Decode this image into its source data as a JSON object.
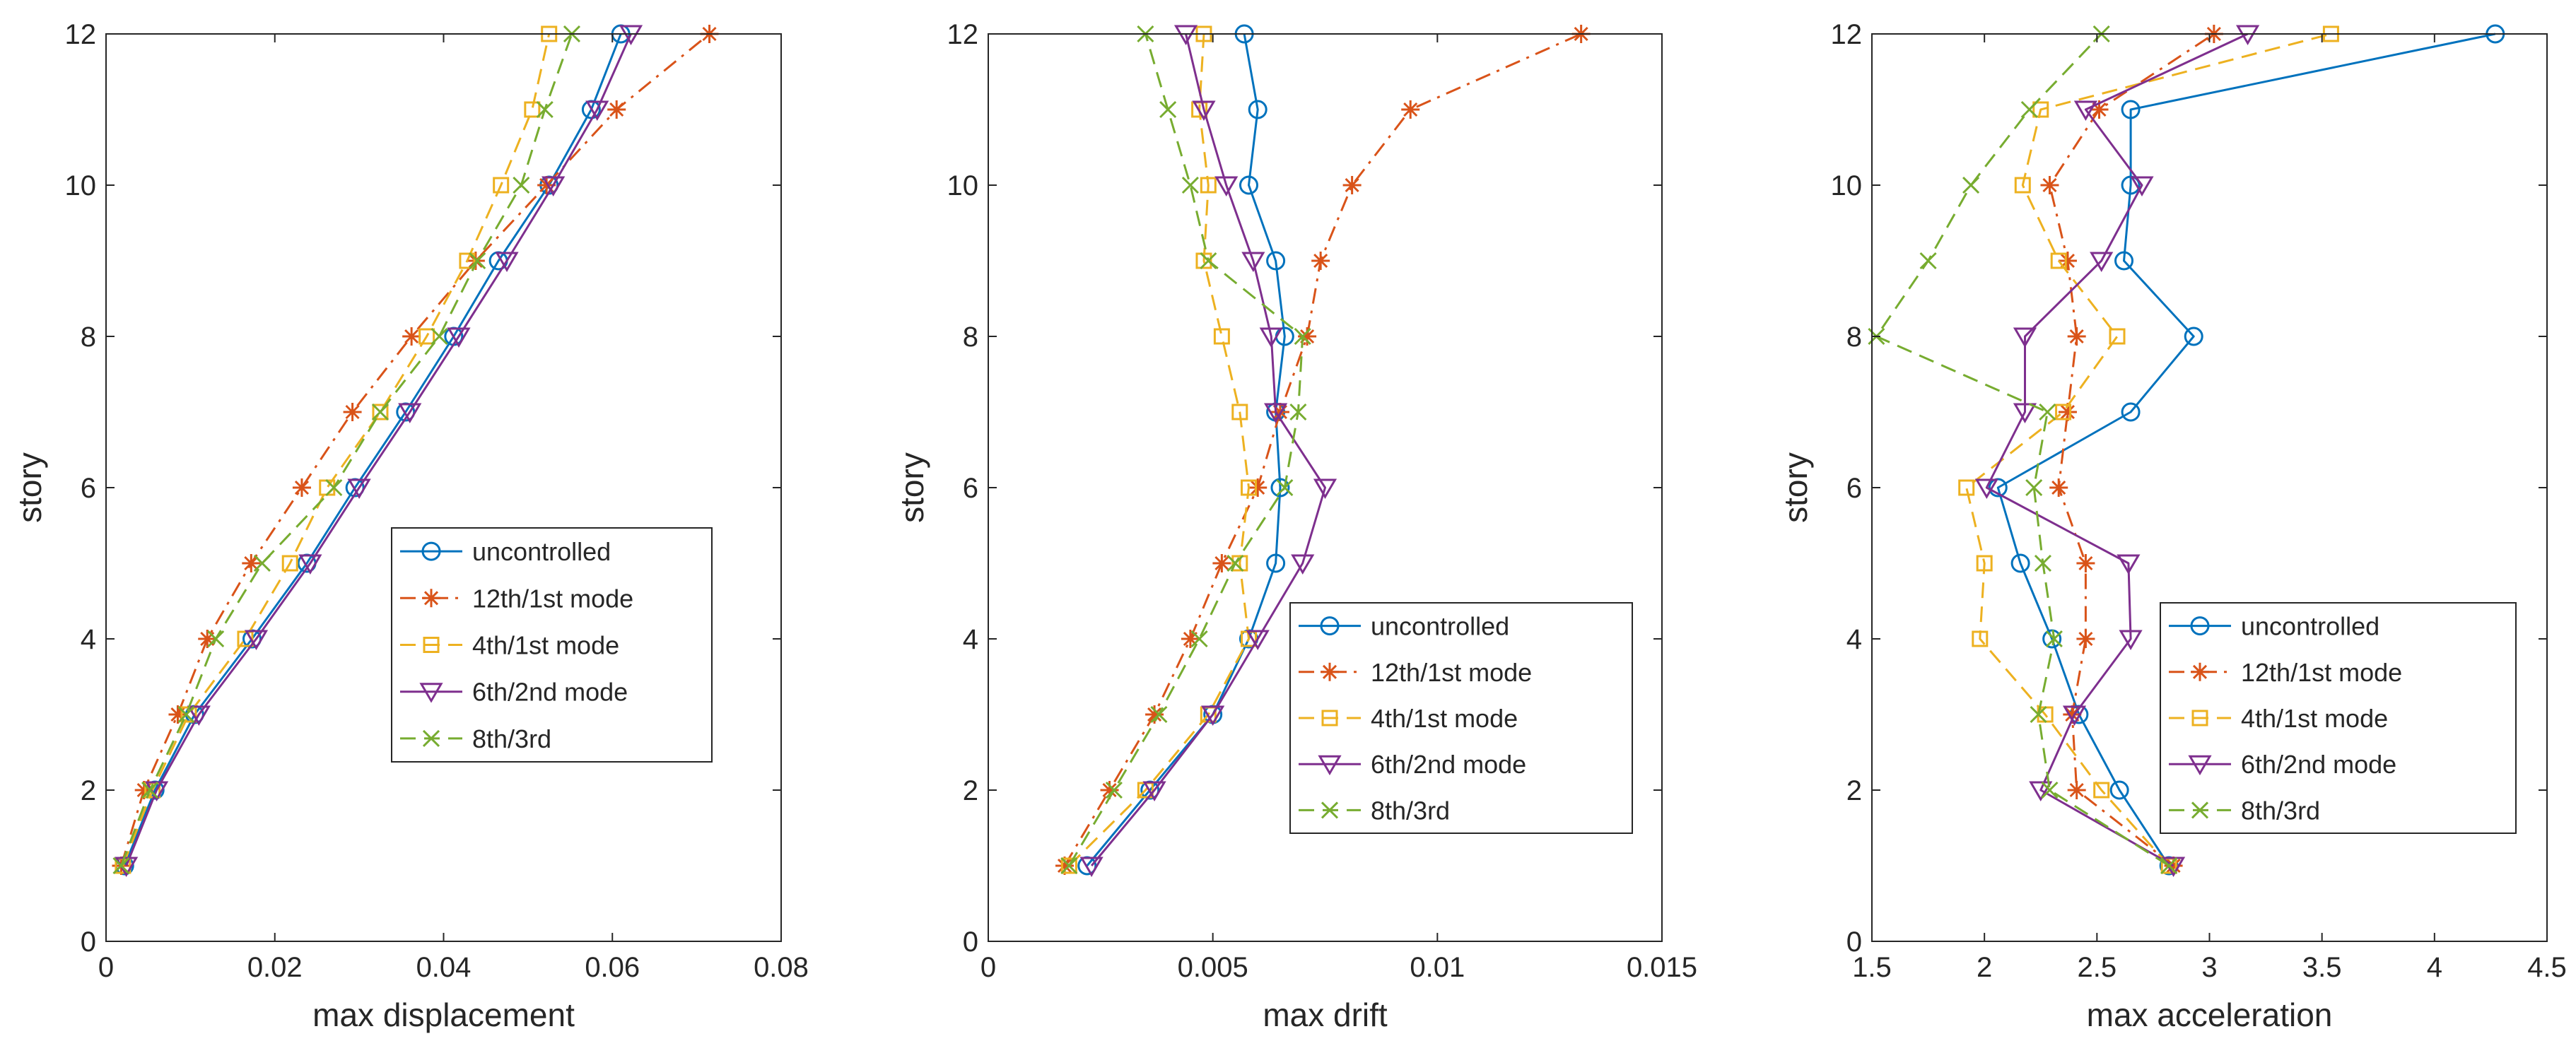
{
  "chart_data": [
    {
      "type": "line",
      "title": "",
      "xlabel": "max displacement",
      "ylabel": "story",
      "xlim": [
        0,
        0.08
      ],
      "ylim": [
        0,
        12
      ],
      "xticks": [
        0,
        0.02,
        0.04,
        0.06,
        0.08
      ],
      "xtick_labels": [
        "0",
        "0.02",
        "0.04",
        "0.06",
        "0.08"
      ],
      "yticks": [
        0,
        2,
        4,
        6,
        8,
        10,
        12
      ],
      "ytick_labels": [
        "0",
        "2",
        "4",
        "6",
        "8",
        "10",
        "12"
      ],
      "legend_position": "middle-right",
      "y": [
        1,
        2,
        3,
        4,
        5,
        6,
        7,
        8,
        9,
        10,
        11,
        12
      ],
      "series": [
        {
          "name": "uncontrolled",
          "values": [
            0.0022,
            0.0058,
            0.0105,
            0.0173,
            0.0238,
            0.0295,
            0.0355,
            0.0412,
            0.0465,
            0.0525,
            0.0575,
            0.061
          ]
        },
        {
          "name": "12th/1st mode",
          "values": [
            0.0018,
            0.0045,
            0.0085,
            0.012,
            0.0172,
            0.0232,
            0.0292,
            0.0362,
            0.0438,
            0.0522,
            0.0605,
            0.0715
          ]
        },
        {
          "name": "4th/1st mode",
          "values": [
            0.002,
            0.0055,
            0.0098,
            0.0165,
            0.0218,
            0.0262,
            0.0325,
            0.038,
            0.0428,
            0.0468,
            0.0505,
            0.0525
          ]
        },
        {
          "name": "6th/2nd mode",
          "values": [
            0.0024,
            0.006,
            0.011,
            0.0178,
            0.0242,
            0.03,
            0.036,
            0.0418,
            0.0475,
            0.053,
            0.0582,
            0.0622
          ]
        },
        {
          "name": "8th/3rd",
          "values": [
            0.0018,
            0.0052,
            0.0095,
            0.013,
            0.0185,
            0.027,
            0.0325,
            0.0395,
            0.044,
            0.0492,
            0.052,
            0.0552
          ]
        }
      ]
    },
    {
      "type": "line",
      "title": "",
      "xlabel": "max drift",
      "ylabel": "story",
      "xlim": [
        0,
        0.015
      ],
      "ylim": [
        0,
        12
      ],
      "xticks": [
        0,
        0.005,
        0.01,
        0.015
      ],
      "xtick_labels": [
        "0",
        "0.005",
        "0.01",
        "0.015"
      ],
      "yticks": [
        0,
        2,
        4,
        6,
        8,
        10,
        12
      ],
      "ytick_labels": [
        "0",
        "2",
        "4",
        "6",
        "8",
        "10",
        "12"
      ],
      "legend_position": "bottom-right",
      "y": [
        1,
        2,
        3,
        4,
        5,
        6,
        7,
        8,
        9,
        10,
        11,
        12
      ],
      "series": [
        {
          "name": "uncontrolled",
          "values": [
            0.0022,
            0.0036,
            0.005,
            0.0058,
            0.0064,
            0.0065,
            0.0064,
            0.0066,
            0.0064,
            0.0058,
            0.006,
            0.0057
          ]
        },
        {
          "name": "12th/1st mode",
          "values": [
            0.0017,
            0.0027,
            0.0037,
            0.0045,
            0.0052,
            0.006,
            0.0065,
            0.0071,
            0.0074,
            0.0081,
            0.0094,
            0.0132
          ]
        },
        {
          "name": "4th/1st mode",
          "values": [
            0.0018,
            0.0035,
            0.0049,
            0.0058,
            0.0056,
            0.0058,
            0.0056,
            0.0052,
            0.0048,
            0.0049,
            0.0047,
            0.0048
          ]
        },
        {
          "name": "6th/2nd mode",
          "values": [
            0.0023,
            0.0037,
            0.005,
            0.006,
            0.007,
            0.0075,
            0.0064,
            0.0063,
            0.0059,
            0.0053,
            0.0048,
            0.0044
          ]
        },
        {
          "name": "8th/3rd",
          "values": [
            0.0018,
            0.0028,
            0.0038,
            0.0047,
            0.0055,
            0.0066,
            0.0069,
            0.007,
            0.0049,
            0.0045,
            0.004,
            0.0035
          ]
        }
      ]
    },
    {
      "type": "line",
      "title": "",
      "xlabel": "max acceleration",
      "ylabel": "story",
      "xlim": [
        1.5,
        4.5
      ],
      "ylim": [
        0,
        12
      ],
      "xticks": [
        1.5,
        2,
        2.5,
        3,
        3.5,
        4,
        4.5
      ],
      "xtick_labels": [
        "1.5",
        "2",
        "2.5",
        "3",
        "3.5",
        "4",
        "4.5"
      ],
      "yticks": [
        0,
        2,
        4,
        6,
        8,
        10,
        12
      ],
      "ytick_labels": [
        "0",
        "2",
        "4",
        "6",
        "8",
        "10",
        "12"
      ],
      "legend_position": "bottom-right",
      "y": [
        1,
        2,
        3,
        4,
        5,
        6,
        7,
        8,
        9,
        10,
        11,
        12
      ],
      "series": [
        {
          "name": "uncontrolled",
          "values": [
            2.82,
            2.6,
            2.42,
            2.3,
            2.16,
            2.06,
            2.65,
            2.93,
            2.62,
            2.65,
            2.65,
            4.27
          ]
        },
        {
          "name": "12th/1st mode",
          "values": [
            2.84,
            2.41,
            2.39,
            2.45,
            2.45,
            2.33,
            2.37,
            2.41,
            2.37,
            2.29,
            2.51,
            3.02
          ]
        },
        {
          "name": "4th/1st mode",
          "values": [
            2.82,
            2.52,
            2.27,
            1.98,
            2.0,
            1.92,
            2.35,
            2.59,
            2.33,
            2.17,
            2.25,
            3.54
          ]
        },
        {
          "name": "6th/2nd mode",
          "values": [
            2.84,
            2.25,
            2.4,
            2.65,
            2.64,
            2.01,
            2.18,
            2.18,
            2.52,
            2.7,
            2.45,
            3.17
          ]
        },
        {
          "name": "8th/3rd",
          "values": [
            2.82,
            2.29,
            2.24,
            2.31,
            2.26,
            2.22,
            2.28,
            1.52,
            1.75,
            1.94,
            2.2,
            2.52
          ]
        }
      ]
    }
  ],
  "style": {
    "series_colors": [
      "#0072bd",
      "#d95319",
      "#edb120",
      "#7e2f8e",
      "#77ac30"
    ],
    "series_markers": [
      "circle-icon",
      "asterisk-icon",
      "square-icon",
      "triangle-down-icon",
      "x-icon"
    ],
    "series_dash": [
      "solid",
      "dash-dot",
      "dashed",
      "solid",
      "dashed"
    ]
  }
}
